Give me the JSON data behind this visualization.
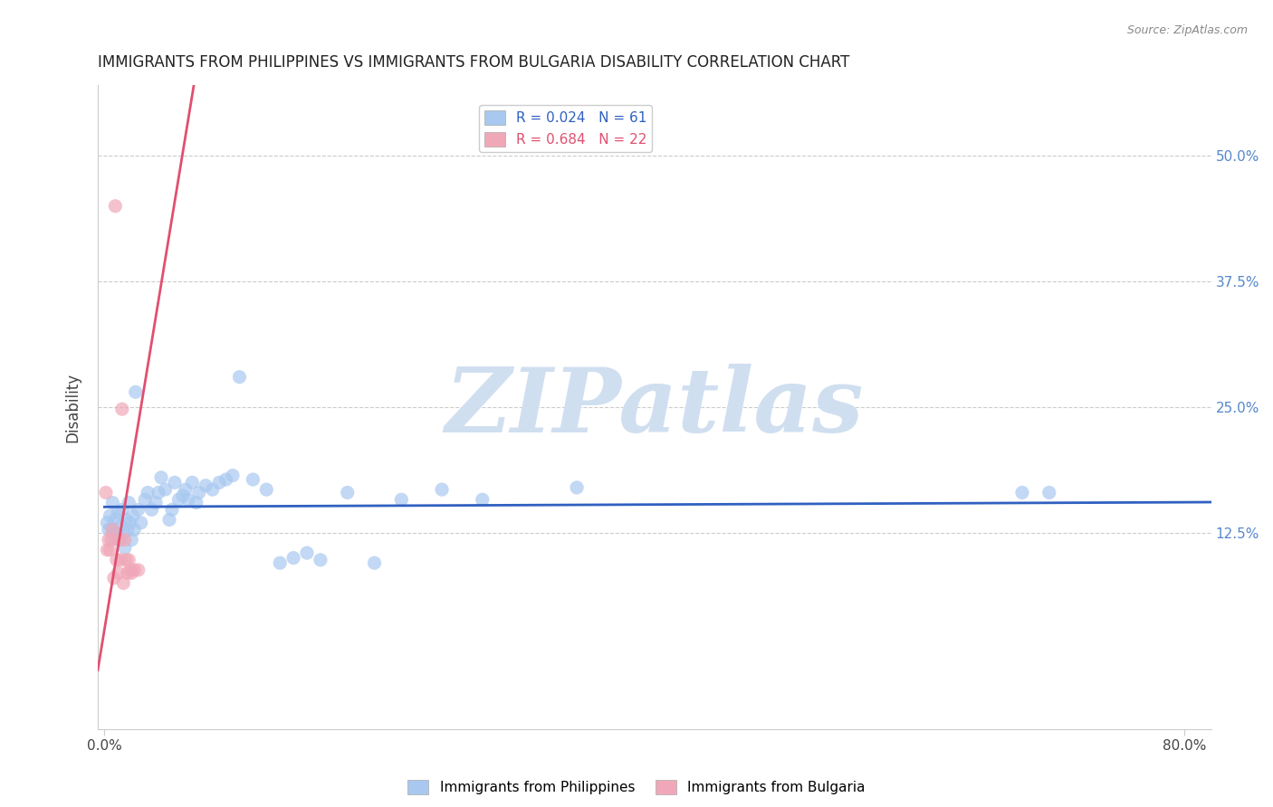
{
  "title": "IMMIGRANTS FROM PHILIPPINES VS IMMIGRANTS FROM BULGARIA DISABILITY CORRELATION CHART",
  "source": "Source: ZipAtlas.com",
  "ylabel": "Disability",
  "yticks": [
    0.125,
    0.25,
    0.375,
    0.5
  ],
  "ytick_labels": [
    "12.5%",
    "25.0%",
    "37.5%",
    "50.0%"
  ],
  "xlim": [
    -0.005,
    0.82
  ],
  "ylim": [
    -0.07,
    0.57
  ],
  "legend_blue_label": "R = 0.024   N = 61",
  "legend_pink_label": "R = 0.684   N = 22",
  "blue_color": "#a8c8f0",
  "blue_line_color": "#3060c0",
  "pink_color": "#f0a8b8",
  "pink_line_color": "#e05070",
  "watermark": "ZIPatlas",
  "watermark_color": "#d0dff0",
  "philippines_x": [
    0.002,
    0.003,
    0.004,
    0.005,
    0.006,
    0.007,
    0.008,
    0.009,
    0.01,
    0.011,
    0.012,
    0.013,
    0.014,
    0.015,
    0.016,
    0.017,
    0.018,
    0.019,
    0.02,
    0.021,
    0.022,
    0.023,
    0.025,
    0.027,
    0.03,
    0.032,
    0.035,
    0.038,
    0.04,
    0.042,
    0.045,
    0.048,
    0.05,
    0.052,
    0.055,
    0.058,
    0.06,
    0.062,
    0.065,
    0.068,
    0.07,
    0.075,
    0.08,
    0.085,
    0.09,
    0.095,
    0.1,
    0.11,
    0.12,
    0.13,
    0.14,
    0.15,
    0.16,
    0.18,
    0.2,
    0.22,
    0.25,
    0.28,
    0.35,
    0.68,
    0.7
  ],
  "philippines_y": [
    0.135,
    0.128,
    0.142,
    0.13,
    0.155,
    0.12,
    0.138,
    0.125,
    0.145,
    0.118,
    0.132,
    0.148,
    0.125,
    0.11,
    0.138,
    0.128,
    0.155,
    0.135,
    0.118,
    0.142,
    0.128,
    0.265,
    0.148,
    0.135,
    0.158,
    0.165,
    0.148,
    0.155,
    0.165,
    0.18,
    0.168,
    0.138,
    0.148,
    0.175,
    0.158,
    0.162,
    0.168,
    0.158,
    0.175,
    0.155,
    0.165,
    0.172,
    0.168,
    0.175,
    0.178,
    0.182,
    0.28,
    0.178,
    0.168,
    0.095,
    0.1,
    0.105,
    0.098,
    0.165,
    0.095,
    0.158,
    0.168,
    0.158,
    0.17,
    0.165,
    0.165
  ],
  "bulgaria_x": [
    0.008,
    0.013,
    0.003,
    0.004,
    0.005,
    0.006,
    0.001,
    0.002,
    0.009,
    0.01,
    0.011,
    0.012,
    0.007,
    0.014,
    0.015,
    0.016,
    0.017,
    0.018,
    0.019,
    0.02,
    0.022,
    0.025
  ],
  "bulgaria_y": [
    0.45,
    0.248,
    0.118,
    0.108,
    0.118,
    0.128,
    0.165,
    0.108,
    0.098,
    0.085,
    0.118,
    0.098,
    0.08,
    0.075,
    0.118,
    0.098,
    0.085,
    0.098,
    0.088,
    0.085,
    0.088,
    0.088
  ]
}
